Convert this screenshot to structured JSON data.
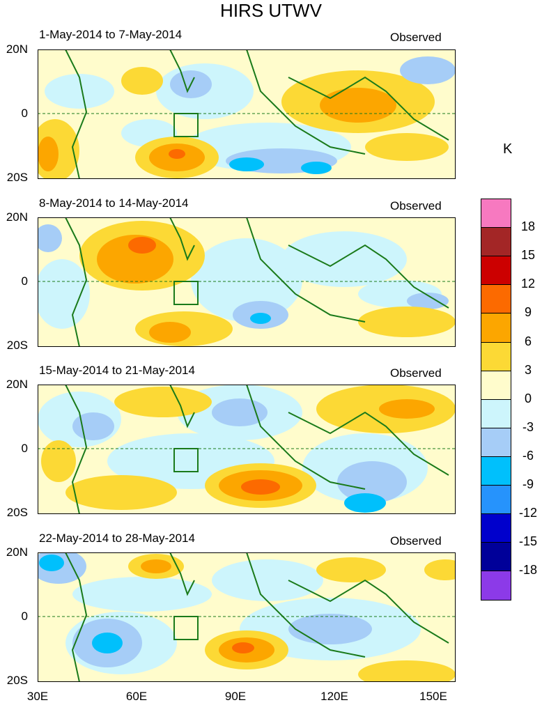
{
  "title": "HIRS UTWV",
  "unit": "K",
  "tag": "Observed",
  "y_labels": [
    "20N",
    "0",
    "20S"
  ],
  "x_labels": [
    "30E",
    "60E",
    "90E",
    "120E",
    "150E"
  ],
  "panels": [
    {
      "label": "1-May-2014 to 7-May-2014"
    },
    {
      "label": "8-May-2014 to 14-May-2014"
    },
    {
      "label": "15-May-2014 to 21-May-2014"
    },
    {
      "label": "22-May-2014 to 28-May-2014"
    }
  ],
  "colorbar": {
    "labels": [
      "18",
      "15",
      "12",
      "9",
      "6",
      "3",
      "0",
      "-3",
      "-6",
      "-9",
      "-12",
      "-15",
      "-18"
    ],
    "colors": [
      "#f779c0",
      "#a32626",
      "#cc0000",
      "#fc6a00",
      "#fca600",
      "#fcd935",
      "#fffccc",
      "#cdf5fc",
      "#a6cdf7",
      "#00c0fc",
      "#2693fc",
      "#0000cc",
      "#000099",
      "#8c3ae8"
    ]
  }
}
